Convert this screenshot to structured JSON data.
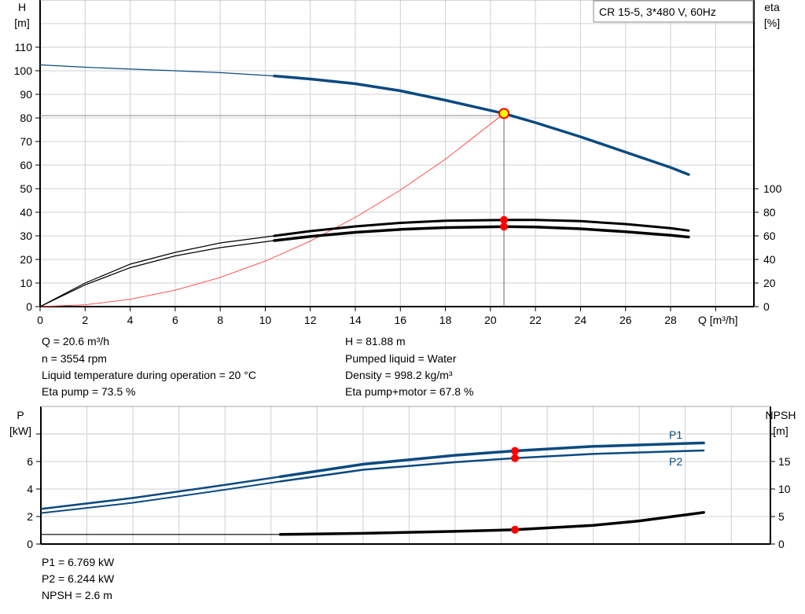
{
  "chart_data": [
    {
      "type": "line",
      "title": "CR 15-5, 3*480 V, 60Hz",
      "xlabel": "Q [m³/h]",
      "ylabel_left": [
        "H",
        "[m]"
      ],
      "ylabel_right": [
        "eta",
        "[%]"
      ],
      "xlim": [
        0,
        31.7
      ],
      "ylim_left": [
        0,
        130
      ],
      "ylim_right": [
        0,
        260
      ],
      "x_ticks": [
        "0",
        "2",
        "4",
        "6",
        "8",
        "10",
        "12",
        "14",
        "16",
        "18",
        "20",
        "22",
        "24",
        "26",
        "28"
      ],
      "y_ticks_left": [
        "0",
        "10",
        "20",
        "30",
        "40",
        "50",
        "60",
        "70",
        "80",
        "90",
        "100",
        "110"
      ],
      "y_ticks_right": [
        "0",
        "20",
        "40",
        "60",
        "80",
        "100"
      ],
      "grid": true,
      "series": [
        {
          "id": "H",
          "axis": "left",
          "color": "#0b4a80",
          "x": [
            0,
            2,
            4,
            6,
            8,
            10.4,
            12,
            14,
            16,
            18,
            20.6,
            22,
            24,
            26,
            28,
            28.8
          ],
          "y": [
            102.5,
            101.5,
            100.7,
            100,
            99.2,
            97.8,
            96.5,
            94.5,
            91.5,
            87.5,
            81.88,
            78,
            72,
            65.5,
            59,
            56
          ]
        },
        {
          "id": "eta_pump",
          "axis": "right",
          "color": "#000000",
          "x": [
            0,
            2,
            4,
            6,
            8,
            10.4,
            12,
            14,
            16,
            18,
            20.6,
            22,
            24,
            26,
            28,
            28.8
          ],
          "y": [
            0,
            20,
            36,
            46,
            54,
            60,
            64,
            68,
            71,
            72.8,
            73.5,
            73.5,
            72.5,
            70,
            66.5,
            64.5
          ]
        },
        {
          "id": "eta_pump_motor",
          "axis": "right",
          "color": "#000000",
          "x": [
            0,
            2,
            4,
            6,
            8,
            10.4,
            12,
            14,
            16,
            18,
            20.6,
            22,
            24,
            26,
            28,
            28.8
          ],
          "y": [
            0,
            18.5,
            33,
            43,
            50,
            56,
            59.5,
            63,
            65.5,
            67,
            67.8,
            67.5,
            66,
            63.5,
            60.5,
            59
          ]
        },
        {
          "id": "system_curve",
          "axis": "left",
          "color": "#ff4040",
          "x": [
            0,
            2,
            4,
            6,
            8,
            10,
            12,
            14,
            16,
            18,
            20.6
          ],
          "y": [
            0,
            0.77,
            3.09,
            6.95,
            12.35,
            19.29,
            27.78,
            37.82,
            49.4,
            62.51,
            81.88
          ]
        }
      ],
      "operating_point": {
        "Q": 20.6,
        "H": 81.88,
        "eta_pump": 73.5,
        "eta_pump_motor": 67.8
      },
      "annotations": [
        "Q = 20.6 m³/h",
        "n = 3554 rpm",
        "Liquid temperature during operation = 20 °C",
        "Eta pump = 73.5 %",
        "H = 81.88 m",
        "Pumped liquid = Water",
        "Density = 998.2 kg/m³",
        "Eta pump+motor = 67.8 %"
      ]
    },
    {
      "type": "line",
      "ylabel_left": [
        "P",
        "[kW]"
      ],
      "ylabel_right": [
        "NPSH",
        "[m]"
      ],
      "xlim": [
        0,
        31.7
      ],
      "ylim_left": [
        0,
        10
      ],
      "ylim_right": [
        0,
        25
      ],
      "y_ticks_left": [
        "0",
        "2",
        "4",
        "6",
        ""
      ],
      "y_ticks_right": [
        "0",
        "5",
        "10",
        "15",
        ""
      ],
      "grid": true,
      "series": [
        {
          "id": "P1",
          "name": "P1",
          "axis": "left",
          "color": "#0b4a80",
          "x": [
            0,
            4,
            8,
            10.4,
            14,
            18,
            20.6,
            24,
            28.8
          ],
          "y": [
            2.55,
            3.35,
            4.3,
            4.9,
            5.8,
            6.45,
            6.769,
            7.1,
            7.35
          ]
        },
        {
          "id": "P2",
          "name": "P2",
          "axis": "left",
          "color": "#0b4a80",
          "x": [
            0,
            4,
            8,
            10.4,
            14,
            18,
            20.6,
            24,
            28.8
          ],
          "y": [
            2.25,
            3.0,
            3.95,
            4.55,
            5.4,
            5.95,
            6.244,
            6.55,
            6.8
          ]
        },
        {
          "id": "NPSH",
          "axis": "right",
          "color": "#000000",
          "x": [
            0,
            10.4,
            14,
            18,
            20.6,
            24,
            26,
            28.8
          ],
          "y": [
            1.75,
            1.75,
            1.95,
            2.3,
            2.6,
            3.4,
            4.2,
            5.75
          ]
        }
      ],
      "operating_point": {
        "Q": 20.6,
        "P1": 6.769,
        "P2": 6.244,
        "NPSH": 2.6
      },
      "annotations": [
        "P1 = 6.769 kW",
        "P2 = 6.244 kW",
        "NPSH = 2.6 m"
      ]
    }
  ]
}
